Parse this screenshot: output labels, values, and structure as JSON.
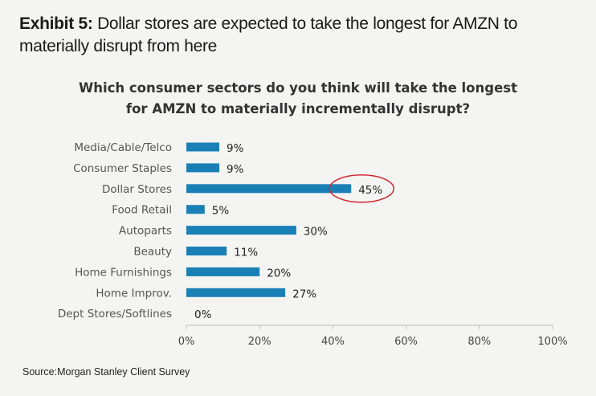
{
  "header": {
    "exhibit_label": "Exhibit 5:",
    "exhibit_title": "Dollar stores are expected to take the longest for AMZN to materially disrupt from here"
  },
  "chart_data": {
    "type": "bar",
    "orientation": "horizontal",
    "title_lines": [
      "Which consumer sectors do you think will take the longest",
      "for AMZN to materially incrementally disrupt?"
    ],
    "categories": [
      "Media/Cable/Telco",
      "Consumer Staples",
      "Dollar Stores",
      "Food Retail",
      "Autoparts",
      "Beauty",
      "Home Furnishings",
      "Home Improv.",
      "Dept Stores/Softlines"
    ],
    "values": [
      9,
      9,
      45,
      5,
      30,
      11,
      20,
      27,
      0
    ],
    "data_labels": [
      "9%",
      "9%",
      "45%",
      "5%",
      "30%",
      "11%",
      "20%",
      "27%",
      "0%"
    ],
    "xlim": [
      0,
      100
    ],
    "x_ticks": [
      0,
      20,
      40,
      60,
      80,
      100
    ],
    "x_tick_labels": [
      "0%",
      "20%",
      "40%",
      "60%",
      "80%",
      "100%"
    ],
    "bar_color": "#1a7fb5",
    "highlight": {
      "category": "Dollar Stores",
      "shape": "ellipse",
      "color": "#d0282e"
    },
    "grid": false,
    "legend": "none"
  },
  "footer": {
    "source": "Source:Morgan Stanley Client Survey"
  }
}
